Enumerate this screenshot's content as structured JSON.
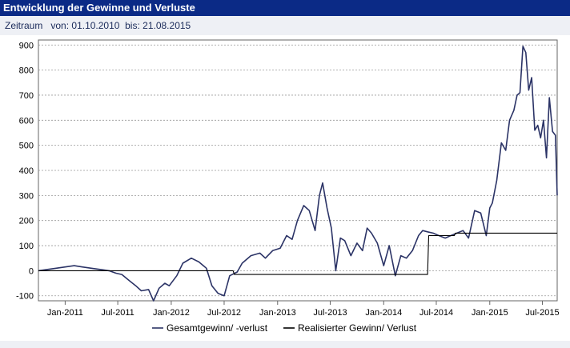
{
  "header": {
    "title": "Entwicklung der Gewinne und Verluste"
  },
  "range": {
    "label": "Zeitraum",
    "from_label": "von:",
    "from": "01.10.2010",
    "to_label": "bis:",
    "to": "21.08.2015"
  },
  "colors": {
    "header_bg": "#0b2a86",
    "total_line": "#2b3366",
    "realized_line": "#000000",
    "grid": "#999999"
  },
  "chart_data": {
    "type": "line",
    "title": "",
    "xlabel": "",
    "ylabel": "",
    "x_range": [
      "2010-10-01",
      "2015-08-21"
    ],
    "ylim": [
      -120,
      920
    ],
    "y_ticks": [
      -100,
      0,
      100,
      200,
      300,
      400,
      500,
      600,
      700,
      800,
      900
    ],
    "x_ticks": [
      {
        "label": "Jan-2011",
        "date": "2011-01-01"
      },
      {
        "label": "Jul-2011",
        "date": "2011-07-01"
      },
      {
        "label": "Jan-2012",
        "date": "2012-01-01"
      },
      {
        "label": "Jul-2012",
        "date": "2012-07-01"
      },
      {
        "label": "Jan-2013",
        "date": "2013-01-01"
      },
      {
        "label": "Jul-2013",
        "date": "2013-07-01"
      },
      {
        "label": "Jan-2014",
        "date": "2014-01-01"
      },
      {
        "label": "Jul-2014",
        "date": "2014-07-01"
      },
      {
        "label": "Jan-2015",
        "date": "2015-01-01"
      },
      {
        "label": "Jul-2015",
        "date": "2015-07-01"
      }
    ],
    "grid": true,
    "legend_position": "bottom-center",
    "series": [
      {
        "name": "Gesamtgewinn/ -verlust",
        "color": "#2b3366",
        "x": [
          "2010-10-01",
          "2010-11-01",
          "2010-12-01",
          "2011-01-01",
          "2011-02-01",
          "2011-03-01",
          "2011-04-01",
          "2011-05-01",
          "2011-06-01",
          "2011-06-25",
          "2011-07-15",
          "2011-08-10",
          "2011-09-01",
          "2011-09-20",
          "2011-10-15",
          "2011-11-01",
          "2011-11-20",
          "2011-12-10",
          "2011-12-25",
          "2012-01-20",
          "2012-02-10",
          "2012-03-10",
          "2012-04-05",
          "2012-05-01",
          "2012-05-20",
          "2012-06-10",
          "2012-07-01",
          "2012-07-20",
          "2012-08-15",
          "2012-09-01",
          "2012-10-01",
          "2012-11-01",
          "2012-11-20",
          "2012-12-15",
          "2013-01-10",
          "2013-02-01",
          "2013-02-20",
          "2013-03-10",
          "2013-04-01",
          "2013-04-20",
          "2013-05-10",
          "2013-05-25",
          "2013-06-05",
          "2013-06-20",
          "2013-07-05",
          "2013-07-20",
          "2013-08-05",
          "2013-08-20",
          "2013-09-10",
          "2013-10-01",
          "2013-10-20",
          "2013-11-05",
          "2013-11-20",
          "2013-12-10",
          "2014-01-01",
          "2014-01-20",
          "2014-02-10",
          "2014-03-01",
          "2014-03-20",
          "2014-04-10",
          "2014-05-01",
          "2014-05-15",
          "2014-06-01",
          "2014-06-20",
          "2014-07-10",
          "2014-08-01",
          "2014-08-20",
          "2014-09-10",
          "2014-10-01",
          "2014-10-20",
          "2014-11-10",
          "2014-12-01",
          "2014-12-20",
          "2015-01-01",
          "2015-01-10",
          "2015-01-25",
          "2015-02-10",
          "2015-02-25",
          "2015-03-10",
          "2015-03-25",
          "2015-04-05",
          "2015-04-15",
          "2015-04-25",
          "2015-05-05",
          "2015-05-15",
          "2015-05-25",
          "2015-06-05",
          "2015-06-15",
          "2015-06-25",
          "2015-07-05",
          "2015-07-15",
          "2015-07-25",
          "2015-08-05",
          "2015-08-15",
          "2015-08-21"
        ],
        "y": [
          0,
          5,
          10,
          15,
          20,
          15,
          10,
          5,
          0,
          -10,
          -15,
          -40,
          -60,
          -80,
          -75,
          -120,
          -70,
          -50,
          -60,
          -20,
          30,
          50,
          35,
          10,
          -60,
          -90,
          -100,
          -20,
          -5,
          30,
          60,
          70,
          50,
          80,
          90,
          140,
          125,
          200,
          260,
          240,
          160,
          300,
          350,
          250,
          170,
          0,
          130,
          120,
          60,
          110,
          80,
          170,
          150,
          110,
          20,
          100,
          -20,
          60,
          50,
          80,
          140,
          160,
          155,
          150,
          140,
          130,
          140,
          150,
          160,
          130,
          240,
          230,
          140,
          250,
          270,
          360,
          510,
          480,
          600,
          640,
          700,
          710,
          895,
          870,
          720,
          770,
          560,
          580,
          530,
          600,
          450,
          690,
          555,
          540,
          300
        ]
      },
      {
        "name": "Realisierter Gewinn/ Verlust",
        "color": "#000000",
        "x": [
          "2010-10-01",
          "2012-08-01",
          "2012-08-05",
          "2014-06-01",
          "2014-06-05",
          "2014-09-01",
          "2014-09-05",
          "2015-08-21"
        ],
        "y": [
          0,
          0,
          -15,
          -15,
          140,
          140,
          150,
          150
        ]
      }
    ]
  }
}
